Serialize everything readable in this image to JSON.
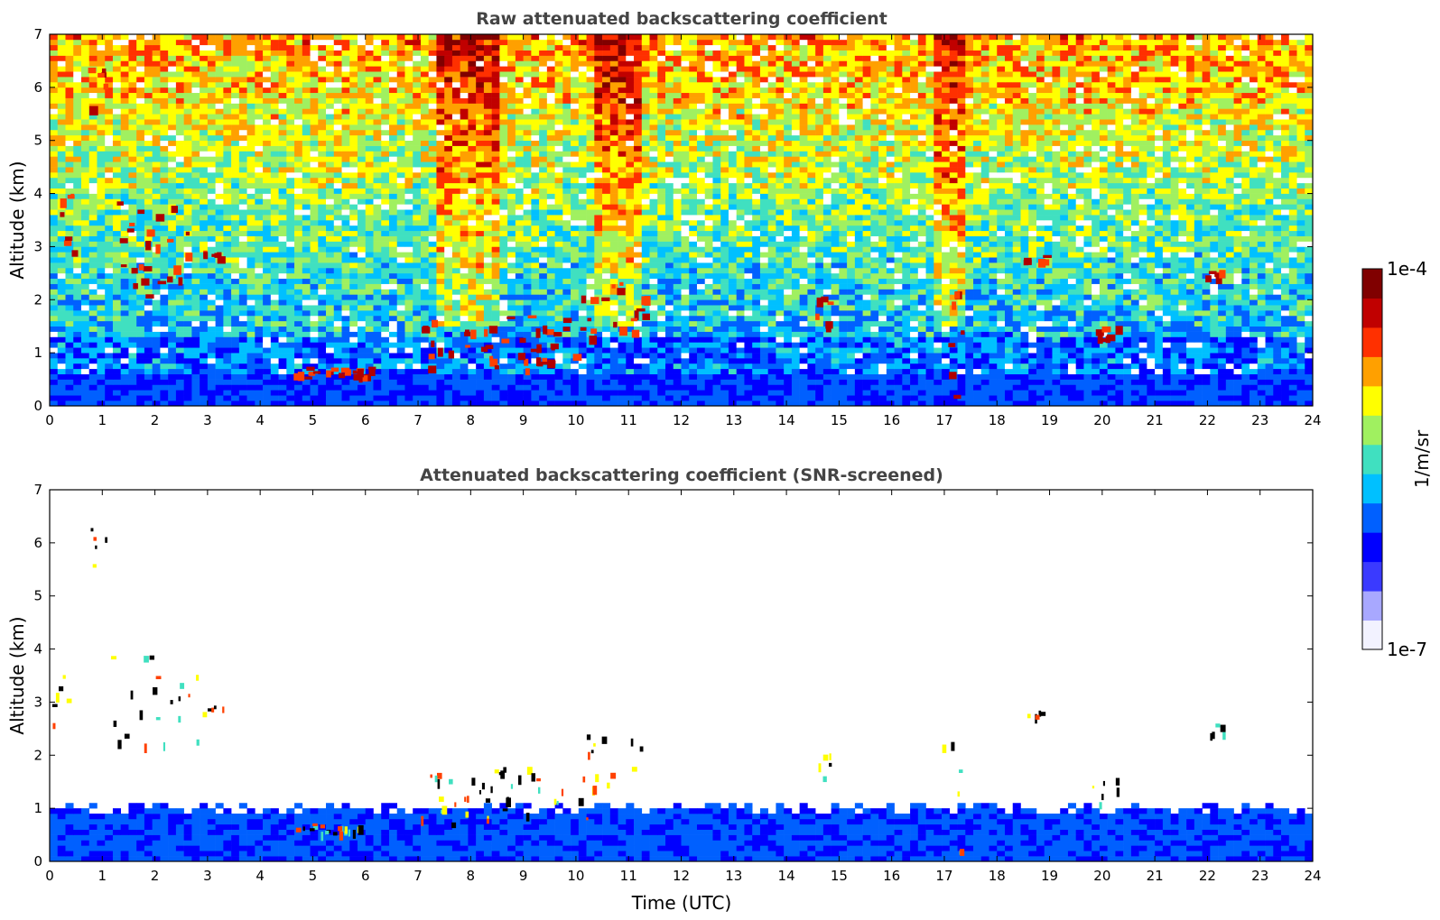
{
  "chart_data": [
    {
      "type": "heatmap",
      "title": "Raw attenuated backscattering coefficient",
      "xlabel": "",
      "ylabel": "Altitude (km)",
      "xlim": [
        0,
        24
      ],
      "ylim": [
        0,
        7
      ],
      "xticks": [
        "0",
        "1",
        "2",
        "3",
        "4",
        "5",
        "6",
        "7",
        "8",
        "9",
        "10",
        "11",
        "12",
        "13",
        "14",
        "15",
        "16",
        "17",
        "18",
        "19",
        "20",
        "21",
        "22",
        "23",
        "24"
      ],
      "yticks": [
        "0",
        "1",
        "2",
        "3",
        "4",
        "5",
        "6",
        "7"
      ],
      "screened": false,
      "features": [
        {
          "kind": "cloud",
          "t": [
            0.0,
            0.5
          ],
          "alt": [
            2.6,
            4.3
          ]
        },
        {
          "kind": "cloud",
          "t": [
            0.7,
            1.1
          ],
          "alt": [
            5.6,
            6.4
          ]
        },
        {
          "kind": "cloud",
          "t": [
            1.1,
            2.8
          ],
          "alt": [
            2.0,
            3.9
          ]
        },
        {
          "kind": "cloud",
          "t": [
            2.9,
            3.3
          ],
          "alt": [
            2.8,
            2.95
          ]
        },
        {
          "kind": "cloud",
          "t": [
            4.6,
            6.2
          ],
          "alt": [
            0.55,
            0.75
          ]
        },
        {
          "kind": "cloud",
          "t": [
            7.0,
            10.3
          ],
          "alt": [
            0.7,
            1.8
          ]
        },
        {
          "kind": "cloud",
          "t": [
            10.1,
            11.3
          ],
          "alt": [
            1.3,
            2.4
          ]
        },
        {
          "kind": "cloud",
          "t": [
            14.5,
            14.9
          ],
          "alt": [
            1.5,
            2.1
          ]
        },
        {
          "kind": "cloud",
          "t": [
            16.9,
            17.4
          ],
          "alt": [
            0.1,
            2.9
          ]
        },
        {
          "kind": "cloud",
          "t": [
            18.5,
            18.9
          ],
          "alt": [
            2.75,
            2.85
          ]
        },
        {
          "kind": "cloud",
          "t": [
            21.9,
            22.3
          ],
          "alt": [
            2.4,
            2.6
          ]
        },
        {
          "kind": "cloud",
          "t": [
            19.8,
            20.3
          ],
          "alt": [
            1.1,
            1.6
          ]
        },
        {
          "kind": "noise-column",
          "t": [
            7.4,
            8.6
          ],
          "alt": [
            1.5,
            7.0
          ]
        },
        {
          "kind": "noise-column",
          "t": [
            10.3,
            11.3
          ],
          "alt": [
            1.5,
            7.0
          ]
        },
        {
          "kind": "noise-column",
          "t": [
            16.8,
            17.4
          ],
          "alt": [
            1.5,
            7.0
          ]
        }
      ]
    },
    {
      "type": "heatmap",
      "title": "Attenuated backscattering coefficient (SNR-screened)",
      "xlabel": "Time (UTC)",
      "ylabel": "Altitude (km)",
      "xlim": [
        0,
        24
      ],
      "ylim": [
        0,
        7
      ],
      "xticks": [
        "0",
        "1",
        "2",
        "3",
        "4",
        "5",
        "6",
        "7",
        "8",
        "9",
        "10",
        "11",
        "12",
        "13",
        "14",
        "15",
        "16",
        "17",
        "18",
        "19",
        "20",
        "21",
        "22",
        "23",
        "24"
      ],
      "yticks": [
        "0",
        "1",
        "2",
        "3",
        "4",
        "5",
        "6",
        "7"
      ],
      "screened": true,
      "boundary_layer_top_km": 1.0
    }
  ],
  "colorbar": {
    "label": "1/m/sr",
    "max_label": "1e-4",
    "min_label": "1e-7",
    "scale": "log",
    "range": [
      1e-07,
      0.0001
    ],
    "colors": [
      "#f2f2ff",
      "#a8a8ff",
      "#3a3aff",
      "#0000ff",
      "#0060ff",
      "#00c0ff",
      "#40e0c0",
      "#a0f060",
      "#ffff00",
      "#ffa000",
      "#ff3000",
      "#c00000",
      "#800000"
    ]
  }
}
